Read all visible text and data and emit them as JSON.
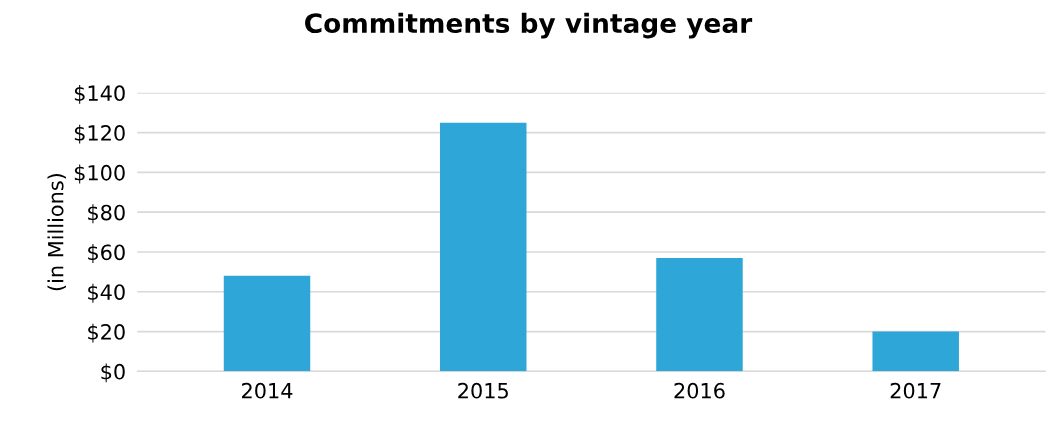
{
  "chart_data": {
    "type": "bar",
    "title": "Commitments by vintage year",
    "ylabel": "(in Millions)",
    "categories": [
      "2014",
      "2015",
      "2016",
      "2017"
    ],
    "values": [
      48,
      125,
      57,
      20
    ],
    "color": "#2ea6d8",
    "ylim": [
      0,
      140
    ],
    "yticks": [
      {
        "value": 0,
        "label": "$0"
      },
      {
        "value": 20,
        "label": "$20"
      },
      {
        "value": 40,
        "label": "$40"
      },
      {
        "value": 60,
        "label": "$60"
      },
      {
        "value": 80,
        "label": "$80"
      },
      {
        "value": 100,
        "label": "$100"
      },
      {
        "value": 120,
        "label": "$120"
      },
      {
        "value": 140,
        "label": "$140"
      }
    ],
    "grid": "y",
    "legend": false
  }
}
